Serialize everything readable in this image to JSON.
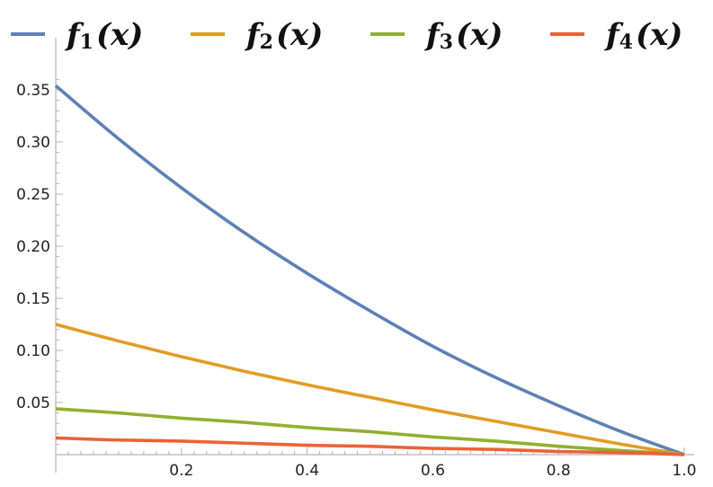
{
  "chart_data": {
    "type": "line",
    "title": "",
    "xlabel": "",
    "ylabel": "",
    "xlim": [
      0,
      1
    ],
    "ylim": [
      0,
      0.36
    ],
    "grid": false,
    "legend_position": "top",
    "x_ticks": [
      "0.2",
      "0.4",
      "0.6",
      "0.8",
      "1.0"
    ],
    "y_ticks": [
      "0.05",
      "0.10",
      "0.15",
      "0.20",
      "0.25",
      "0.30",
      "0.35"
    ],
    "x": [
      0,
      0.1,
      0.2,
      0.3,
      0.4,
      0.5,
      0.6,
      0.7,
      0.8,
      0.9,
      1.0
    ],
    "series": [
      {
        "name": "f",
        "subscript": "1",
        "arg": "(x)",
        "color": "#5e81b5",
        "values": [
          0.354,
          0.303,
          0.256,
          0.213,
          0.174,
          0.138,
          0.104,
          0.074,
          0.047,
          0.022,
          0.0
        ]
      },
      {
        "name": "f",
        "subscript": "2",
        "arg": "(x)",
        "color": "#e19c24",
        "values": [
          0.125,
          0.109,
          0.094,
          0.08,
          0.067,
          0.055,
          0.043,
          0.032,
          0.021,
          0.01,
          0.0
        ]
      },
      {
        "name": "f",
        "subscript": "3",
        "arg": "(x)",
        "color": "#8fb032",
        "values": [
          0.044,
          0.04,
          0.035,
          0.031,
          0.026,
          0.022,
          0.017,
          0.013,
          0.008,
          0.004,
          0.0
        ]
      },
      {
        "name": "f",
        "subscript": "4",
        "arg": "(x)",
        "color": "#eb6235",
        "values": [
          0.016,
          0.014,
          0.013,
          0.011,
          0.009,
          0.008,
          0.006,
          0.005,
          0.003,
          0.002,
          0.0
        ]
      }
    ]
  }
}
